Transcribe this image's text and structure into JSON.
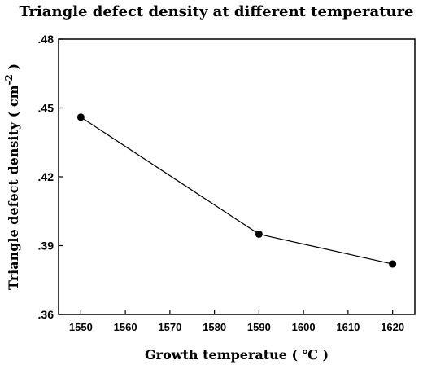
{
  "chart_data": {
    "type": "line",
    "title": "Triangle defect density at different temperature",
    "xlabel": "Growth temperatue ( ℃ )",
    "ylabel_main": "Triangle defect density ( cm",
    "ylabel_sup": "-2",
    "ylabel_close": " )",
    "x": [
      1550,
      1590,
      1620
    ],
    "y": [
      0.446,
      0.395,
      0.382
    ],
    "xlim": [
      1545,
      1625
    ],
    "ylim": [
      0.36,
      0.48
    ],
    "xticks": [
      1550,
      1560,
      1570,
      1580,
      1590,
      1600,
      1610,
      1620
    ],
    "xtick_labels": [
      "1550",
      "1560",
      "1570",
      "1580",
      "1590",
      "1600",
      "1610",
      "1620"
    ],
    "yticks": [
      0.36,
      0.39,
      0.42,
      0.45,
      0.48
    ],
    "ytick_labels": [
      ".36",
      ".39",
      ".42",
      ".45",
      ".48"
    ],
    "grid": false,
    "legend": "none",
    "colors": {
      "line": "#000000",
      "marker": "#000000"
    }
  }
}
